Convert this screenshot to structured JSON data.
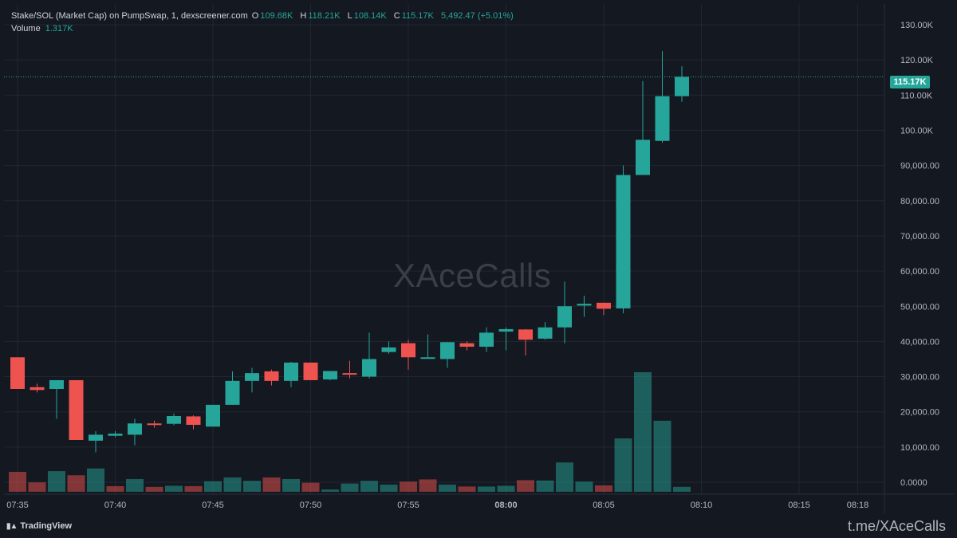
{
  "header": {
    "symbol_line": "Stake/SOL (Market Cap) on PumpSwap, 1, dexscreener.com",
    "o_label": "O",
    "o_value": "109.68K",
    "h_label": "H",
    "h_value": "118.21K",
    "l_label": "L",
    "l_value": "108.14K",
    "c_label": "C",
    "c_value": "115.17K",
    "change": "5,492.47 (+5.01%)",
    "volume_label": "Volume",
    "volume_value": "1.317K"
  },
  "watermark": "XAceCalls",
  "footer": {
    "logo_text": "TradingView",
    "link_text": "t.me/XAceCalls"
  },
  "colors": {
    "up": "#26a69a",
    "down": "#ef5350",
    "background": "#141821",
    "grid": "#222631"
  },
  "chart_data": {
    "type": "candlestick",
    "interval": "1m",
    "last_price_label": "115.17K",
    "y_ticks": [
      "130.00K",
      "120.00K",
      "110.00K",
      "100.00K",
      "90,000.00",
      "80,000.00",
      "70,000.00",
      "60,000.00",
      "50,000.00",
      "40,000.00",
      "30,000.00",
      "20,000.00",
      "10,000.00",
      "0.0000"
    ],
    "y_tick_values": [
      130000,
      120000,
      110000,
      100000,
      90000,
      80000,
      70000,
      60000,
      50000,
      40000,
      30000,
      20000,
      10000,
      0
    ],
    "x_ticks": [
      "07:35",
      "07:40",
      "07:45",
      "07:50",
      "07:55",
      "08:00",
      "08:05",
      "08:10",
      "08:15",
      "08:18"
    ],
    "x_tick_minutes": [
      0,
      5,
      10,
      15,
      20,
      25,
      30,
      35,
      40,
      43
    ],
    "candles": [
      {
        "t": "07:35",
        "o": 35500,
        "h": 35500,
        "l": 26500,
        "c": 26500
      },
      {
        "t": "07:36",
        "o": 27000,
        "h": 28000,
        "l": 25500,
        "c": 26200
      },
      {
        "t": "07:37",
        "o": 26500,
        "h": 29000,
        "l": 18000,
        "c": 29000
      },
      {
        "t": "07:38",
        "o": 29000,
        "h": 29000,
        "l": 12000,
        "c": 12000
      },
      {
        "t": "07:39",
        "o": 11800,
        "h": 14500,
        "l": 8500,
        "c": 13500
      },
      {
        "t": "07:40",
        "o": 13200,
        "h": 14500,
        "l": 12800,
        "c": 13800
      },
      {
        "t": "07:41",
        "o": 13500,
        "h": 18000,
        "l": 10500,
        "c": 16700
      },
      {
        "t": "07:42",
        "o": 16700,
        "h": 17500,
        "l": 15500,
        "c": 16500
      },
      {
        "t": "07:43",
        "o": 16600,
        "h": 19500,
        "l": 16200,
        "c": 18800
      },
      {
        "t": "07:44",
        "o": 18700,
        "h": 19000,
        "l": 15000,
        "c": 16300
      },
      {
        "t": "07:45",
        "o": 15800,
        "h": 22000,
        "l": 15800,
        "c": 22000
      },
      {
        "t": "07:46",
        "o": 22000,
        "h": 31500,
        "l": 22000,
        "c": 28800
      },
      {
        "t": "07:47",
        "o": 28800,
        "h": 32500,
        "l": 25500,
        "c": 31000
      },
      {
        "t": "07:48",
        "o": 31500,
        "h": 32000,
        "l": 27500,
        "c": 28800
      },
      {
        "t": "07:49",
        "o": 28800,
        "h": 34200,
        "l": 27000,
        "c": 34000
      },
      {
        "t": "07:50",
        "o": 34000,
        "h": 34000,
        "l": 29000,
        "c": 29000
      },
      {
        "t": "07:51",
        "o": 29200,
        "h": 31600,
        "l": 29000,
        "c": 31600
      },
      {
        "t": "07:52",
        "o": 31000,
        "h": 34500,
        "l": 29500,
        "c": 30800
      },
      {
        "t": "07:53",
        "o": 30000,
        "h": 42500,
        "l": 29500,
        "c": 35000
      },
      {
        "t": "07:54",
        "o": 37000,
        "h": 40000,
        "l": 36500,
        "c": 38300
      },
      {
        "t": "07:55",
        "o": 39500,
        "h": 40500,
        "l": 32000,
        "c": 35500
      },
      {
        "t": "07:56",
        "o": 35300,
        "h": 42000,
        "l": 35300,
        "c": 35500
      },
      {
        "t": "07:57",
        "o": 35000,
        "h": 39800,
        "l": 32500,
        "c": 39800
      },
      {
        "t": "07:58",
        "o": 39500,
        "h": 40000,
        "l": 37500,
        "c": 38500
      },
      {
        "t": "07:59",
        "o": 38500,
        "h": 44000,
        "l": 37000,
        "c": 42500
      },
      {
        "t": "08:00",
        "o": 42800,
        "h": 44000,
        "l": 37500,
        "c": 43500
      },
      {
        "t": "08:01",
        "o": 43400,
        "h": 43500,
        "l": 36000,
        "c": 40500
      },
      {
        "t": "08:02",
        "o": 40800,
        "h": 45500,
        "l": 40500,
        "c": 44000
      },
      {
        "t": "08:03",
        "o": 44000,
        "h": 57000,
        "l": 39500,
        "c": 50000
      },
      {
        "t": "08:04",
        "o": 50200,
        "h": 53000,
        "l": 47000,
        "c": 50700
      },
      {
        "t": "08:05",
        "o": 51000,
        "h": 51000,
        "l": 47500,
        "c": 49300
      },
      {
        "t": "08:06",
        "o": 49400,
        "h": 90000,
        "l": 48000,
        "c": 87300
      },
      {
        "t": "08:07",
        "o": 87300,
        "h": 114000,
        "l": 87300,
        "c": 97300
      },
      {
        "t": "08:08",
        "o": 97000,
        "h": 122500,
        "l": 96500,
        "c": 109700
      },
      {
        "t": "08:09",
        "o": 109700,
        "h": 118200,
        "l": 108100,
        "c": 115200
      }
    ],
    "volume": [
      {
        "t": "07:35",
        "v": 5300,
        "dir": "down"
      },
      {
        "t": "07:36",
        "v": 2500,
        "dir": "down"
      },
      {
        "t": "07:37",
        "v": 5500,
        "dir": "up"
      },
      {
        "t": "07:38",
        "v": 4400,
        "dir": "down"
      },
      {
        "t": "07:39",
        "v": 6200,
        "dir": "up"
      },
      {
        "t": "07:40",
        "v": 1500,
        "dir": "down"
      },
      {
        "t": "07:41",
        "v": 3400,
        "dir": "up"
      },
      {
        "t": "07:42",
        "v": 1300,
        "dir": "down"
      },
      {
        "t": "07:43",
        "v": 1600,
        "dir": "up"
      },
      {
        "t": "07:44",
        "v": 1500,
        "dir": "down"
      },
      {
        "t": "07:45",
        "v": 2800,
        "dir": "up"
      },
      {
        "t": "07:46",
        "v": 3800,
        "dir": "up"
      },
      {
        "t": "07:47",
        "v": 2900,
        "dir": "up"
      },
      {
        "t": "07:48",
        "v": 3800,
        "dir": "down"
      },
      {
        "t": "07:49",
        "v": 3400,
        "dir": "up"
      },
      {
        "t": "07:50",
        "v": 2400,
        "dir": "down"
      },
      {
        "t": "07:51",
        "v": 600,
        "dir": "up"
      },
      {
        "t": "07:52",
        "v": 2200,
        "dir": "up"
      },
      {
        "t": "07:53",
        "v": 2900,
        "dir": "up"
      },
      {
        "t": "07:54",
        "v": 1900,
        "dir": "up"
      },
      {
        "t": "07:55",
        "v": 2700,
        "dir": "down"
      },
      {
        "t": "07:56",
        "v": 3300,
        "dir": "down"
      },
      {
        "t": "07:57",
        "v": 1900,
        "dir": "up"
      },
      {
        "t": "07:58",
        "v": 1400,
        "dir": "down"
      },
      {
        "t": "07:59",
        "v": 1400,
        "dir": "up"
      },
      {
        "t": "08:00",
        "v": 1600,
        "dir": "up"
      },
      {
        "t": "08:01",
        "v": 3100,
        "dir": "down"
      },
      {
        "t": "08:02",
        "v": 3000,
        "dir": "up"
      },
      {
        "t": "08:03",
        "v": 7800,
        "dir": "up"
      },
      {
        "t": "08:04",
        "v": 2700,
        "dir": "up"
      },
      {
        "t": "08:05",
        "v": 1700,
        "dir": "down"
      },
      {
        "t": "08:06",
        "v": 14200,
        "dir": "up"
      },
      {
        "t": "08:07",
        "v": 31800,
        "dir": "up"
      },
      {
        "t": "08:08",
        "v": 18900,
        "dir": "up"
      },
      {
        "t": "08:09",
        "v": 1317,
        "dir": "up"
      }
    ]
  }
}
